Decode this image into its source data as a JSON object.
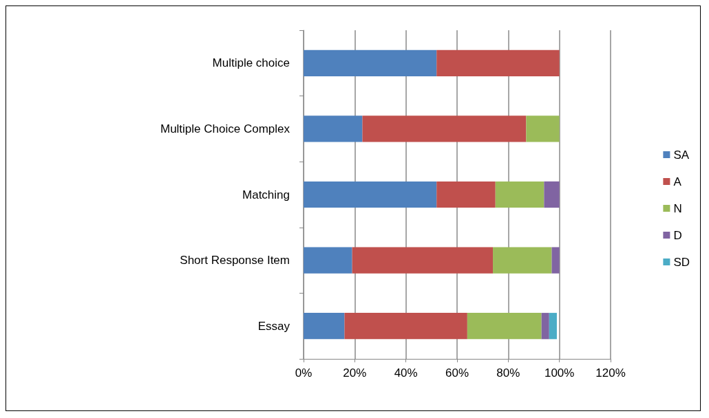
{
  "chart_data": {
    "type": "bar",
    "orientation": "horizontal",
    "stacked": true,
    "categories": [
      "Multiple choice",
      "Multiple Choice Complex",
      "Matching",
      "Short Response Item",
      "Essay"
    ],
    "series": [
      {
        "name": "SA",
        "color": "#4f81bd",
        "values": [
          52,
          23,
          52,
          19,
          16
        ]
      },
      {
        "name": "A",
        "color": "#c0504d",
        "values": [
          48,
          64,
          23,
          55,
          48
        ]
      },
      {
        "name": "N",
        "color": "#9bbb59",
        "values": [
          null,
          13,
          19,
          23,
          29
        ]
      },
      {
        "name": "D",
        "color": "#8064a2",
        "values": [
          null,
          null,
          6,
          3,
          3
        ]
      },
      {
        "name": "SD",
        "color": "#4bacc6",
        "values": [
          null,
          null,
          null,
          null,
          3
        ]
      }
    ],
    "xlim": [
      0,
      120
    ],
    "xticks": [
      {
        "value": 0,
        "label": "0%"
      },
      {
        "value": 20,
        "label": "20%"
      },
      {
        "value": 40,
        "label": "40%"
      },
      {
        "value": 60,
        "label": "60%"
      },
      {
        "value": 80,
        "label": "80%"
      },
      {
        "value": 100,
        "label": "100%"
      },
      {
        "value": 120,
        "label": "120%"
      }
    ],
    "grid": "x",
    "legend": "right"
  }
}
